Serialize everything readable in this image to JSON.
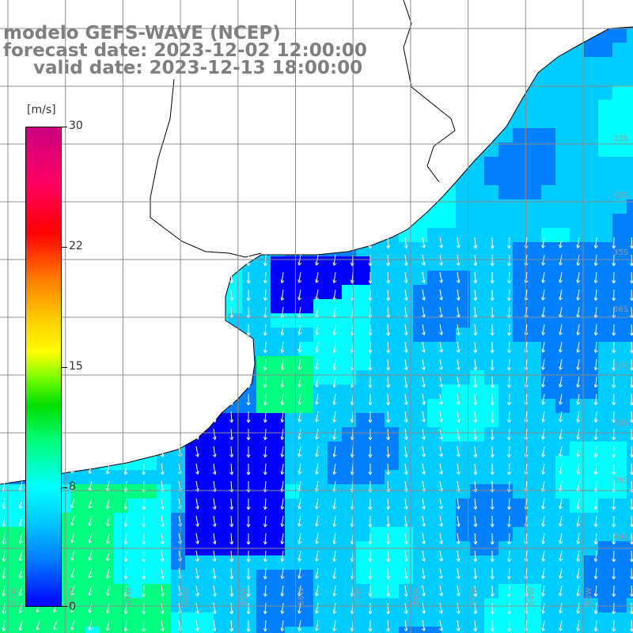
{
  "header": {
    "title": "modelo GEFS-WAVE (NCEP)",
    "forecast": "forecast date: 2023-12-02 12:00:00",
    "valid": "valid date: 2023-12-13 18:00:00"
  },
  "colorbar": {
    "unit": "[m/s]",
    "ticks": [
      {
        "label": "30",
        "value": 30
      },
      {
        "label": "22",
        "value": 22
      },
      {
        "label": "15",
        "value": 15
      },
      {
        "label": "8",
        "value": 8
      },
      {
        "label": "0",
        "value": 0
      }
    ]
  },
  "map": {
    "variable": "wind speed and direction",
    "land_color": "#ffffff",
    "coastline_color": "#000000",
    "grid_color": "#8c8c8c",
    "vector_color": "#ffffff",
    "palette": [
      "#0000ff",
      "#0080ff",
      "#00ccff",
      "#00ffff",
      "#00ff80",
      "#00dd00"
    ],
    "lat_labels": [
      "33S",
      "34S",
      "35S",
      "36S",
      "37S",
      "38S",
      "39S",
      "40S"
    ],
    "lon_labels": [
      "63W",
      "62W",
      "61W",
      "60W",
      "59W",
      "58W",
      "57W",
      "56W",
      "55W",
      "54W",
      "53W"
    ]
  }
}
